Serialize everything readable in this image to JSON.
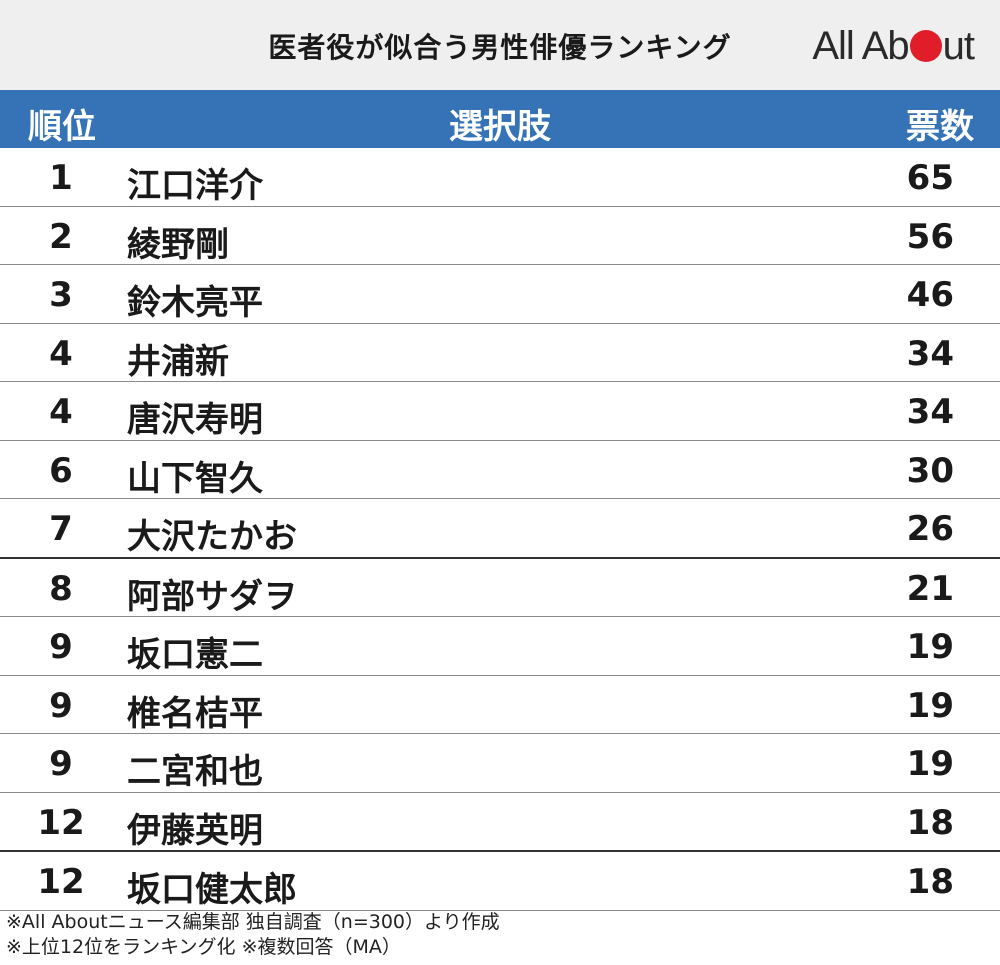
{
  "header": {
    "title": "医者役が似合う男性俳優ランキング",
    "logo_text_left": "All Ab",
    "logo_text_right": "ut"
  },
  "table_header": {
    "rank": "順位",
    "name": "選択肢",
    "votes": "票数"
  },
  "colors": {
    "header_blue": "#3573b6",
    "logo_red": "#e11d2a",
    "banner_gray": "#efefef"
  },
  "chart_data": {
    "type": "table",
    "title": "医者役が似合う男性俳優ランキング",
    "columns": [
      "順位",
      "選択肢",
      "票数"
    ],
    "rows": [
      {
        "rank": "1",
        "name": "江口洋介",
        "votes": "65"
      },
      {
        "rank": "2",
        "name": "綾野剛",
        "votes": "56"
      },
      {
        "rank": "3",
        "name": "鈴木亮平",
        "votes": "46"
      },
      {
        "rank": "4",
        "name": "井浦新",
        "votes": "34"
      },
      {
        "rank": "4",
        "name": "唐沢寿明",
        "votes": "34"
      },
      {
        "rank": "6",
        "name": "山下智久",
        "votes": "30"
      },
      {
        "rank": "7",
        "name": "大沢たかお",
        "votes": "26"
      },
      {
        "rank": "8",
        "name": "阿部サダヲ",
        "votes": "21"
      },
      {
        "rank": "9",
        "name": "坂口憲二",
        "votes": "19"
      },
      {
        "rank": "9",
        "name": "椎名桔平",
        "votes": "19"
      },
      {
        "rank": "9",
        "name": "二宮和也",
        "votes": "19"
      },
      {
        "rank": "12",
        "name": "伊藤英明",
        "votes": "18"
      },
      {
        "rank": "12",
        "name": "坂口健太郎",
        "votes": "18"
      }
    ]
  },
  "footer": {
    "note1": "※All Aboutニュース編集部 独自調査（n=300）より作成",
    "note2": "※上位12位をランキング化 ※複数回答（MA）"
  }
}
